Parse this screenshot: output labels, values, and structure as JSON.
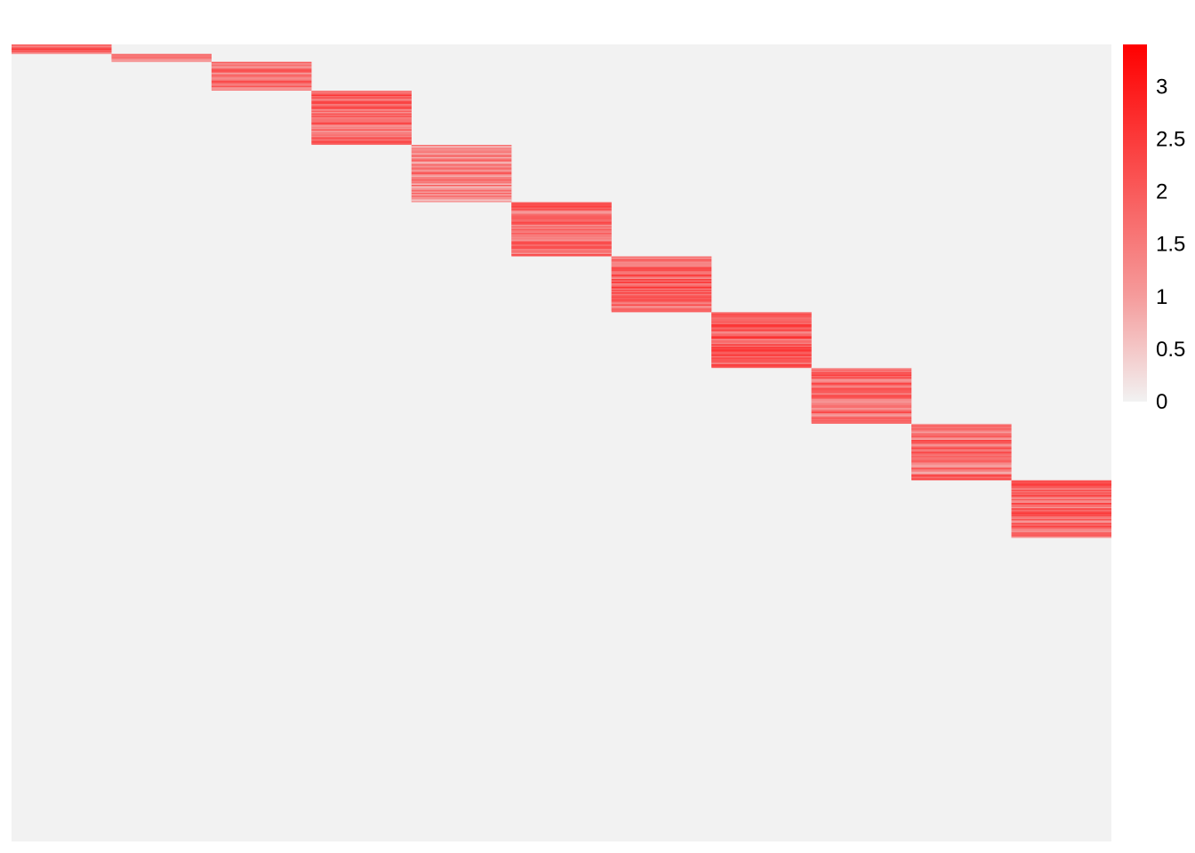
{
  "chart_data": {
    "type": "heatmap",
    "title": "",
    "xlabel": "",
    "ylabel": "",
    "n_columns": 11,
    "background_value": 0,
    "row_fractions": [
      0.012,
      0.01,
      0.036,
      0.068,
      0.072,
      0.068,
      0.07,
      0.07,
      0.07,
      0.071,
      0.072,
      0.381
    ],
    "block_mean_values": [
      1.7,
      1.2,
      1.6,
      1.8,
      1.3,
      1.7,
      1.9,
      1.9,
      1.7,
      1.6,
      1.8
    ],
    "colorscale": {
      "min": 0,
      "max": 3.4,
      "low_color": "#f2f2f2",
      "mid_color": "#f59a9a",
      "high_color": "#ff0000",
      "ticks": [
        0,
        0.5,
        1,
        1.5,
        2,
        2.5,
        3
      ],
      "tick_labels": [
        "0",
        "0.5",
        "1",
        "1.5",
        "2",
        "2.5",
        "3"
      ]
    },
    "legend": "right",
    "grid": false
  }
}
